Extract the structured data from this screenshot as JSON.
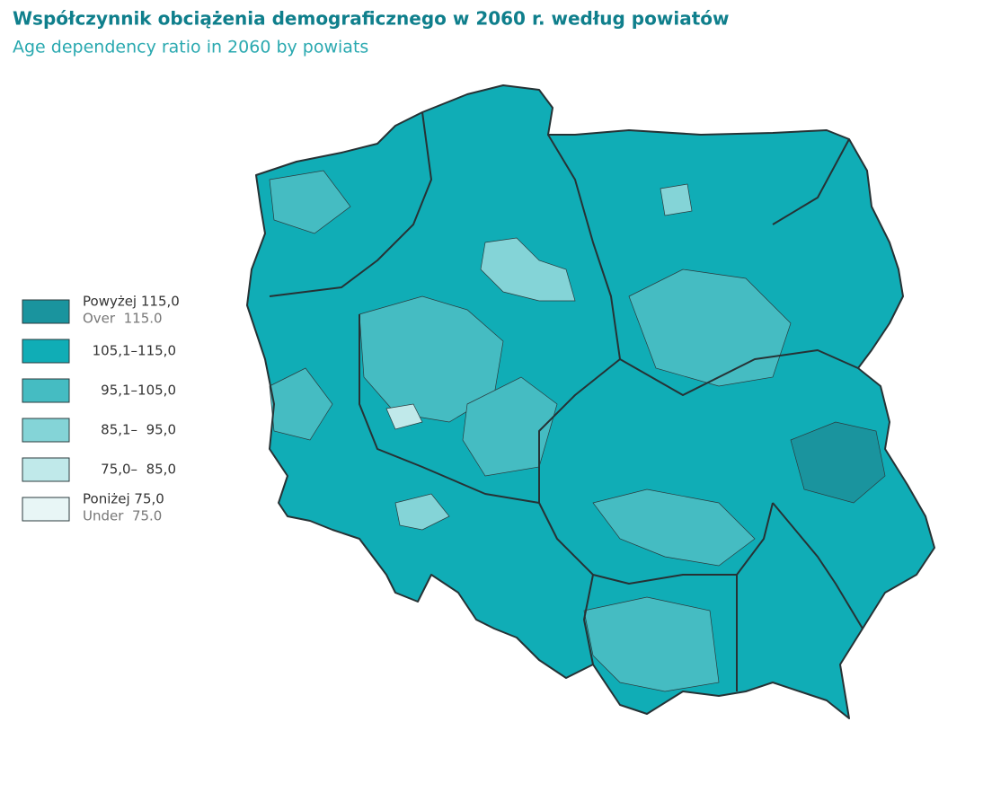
{
  "title": "Współczynnik obciążenia demograficznego w 2060 r. według powiatów",
  "subtitle": "Age dependency ratio in 2060 by powiats",
  "legend": [
    {
      "label": "Powyżej 115,0",
      "label_en": "Over  115.0",
      "color": "#1a949e"
    },
    {
      "label": "105,1–115,0",
      "color": "#10adb6"
    },
    {
      "label": "95,1–105,0",
      "color": "#45bcc2"
    },
    {
      "label": "85,1–  95,0",
      "color": "#84d4d7"
    },
    {
      "label": "75,0–  85,0",
      "color": "#c0e9ea"
    },
    {
      "label": "Poniżej 75,0",
      "label_en": "Under  75.0",
      "color": "#e8f6f6"
    }
  ]
}
